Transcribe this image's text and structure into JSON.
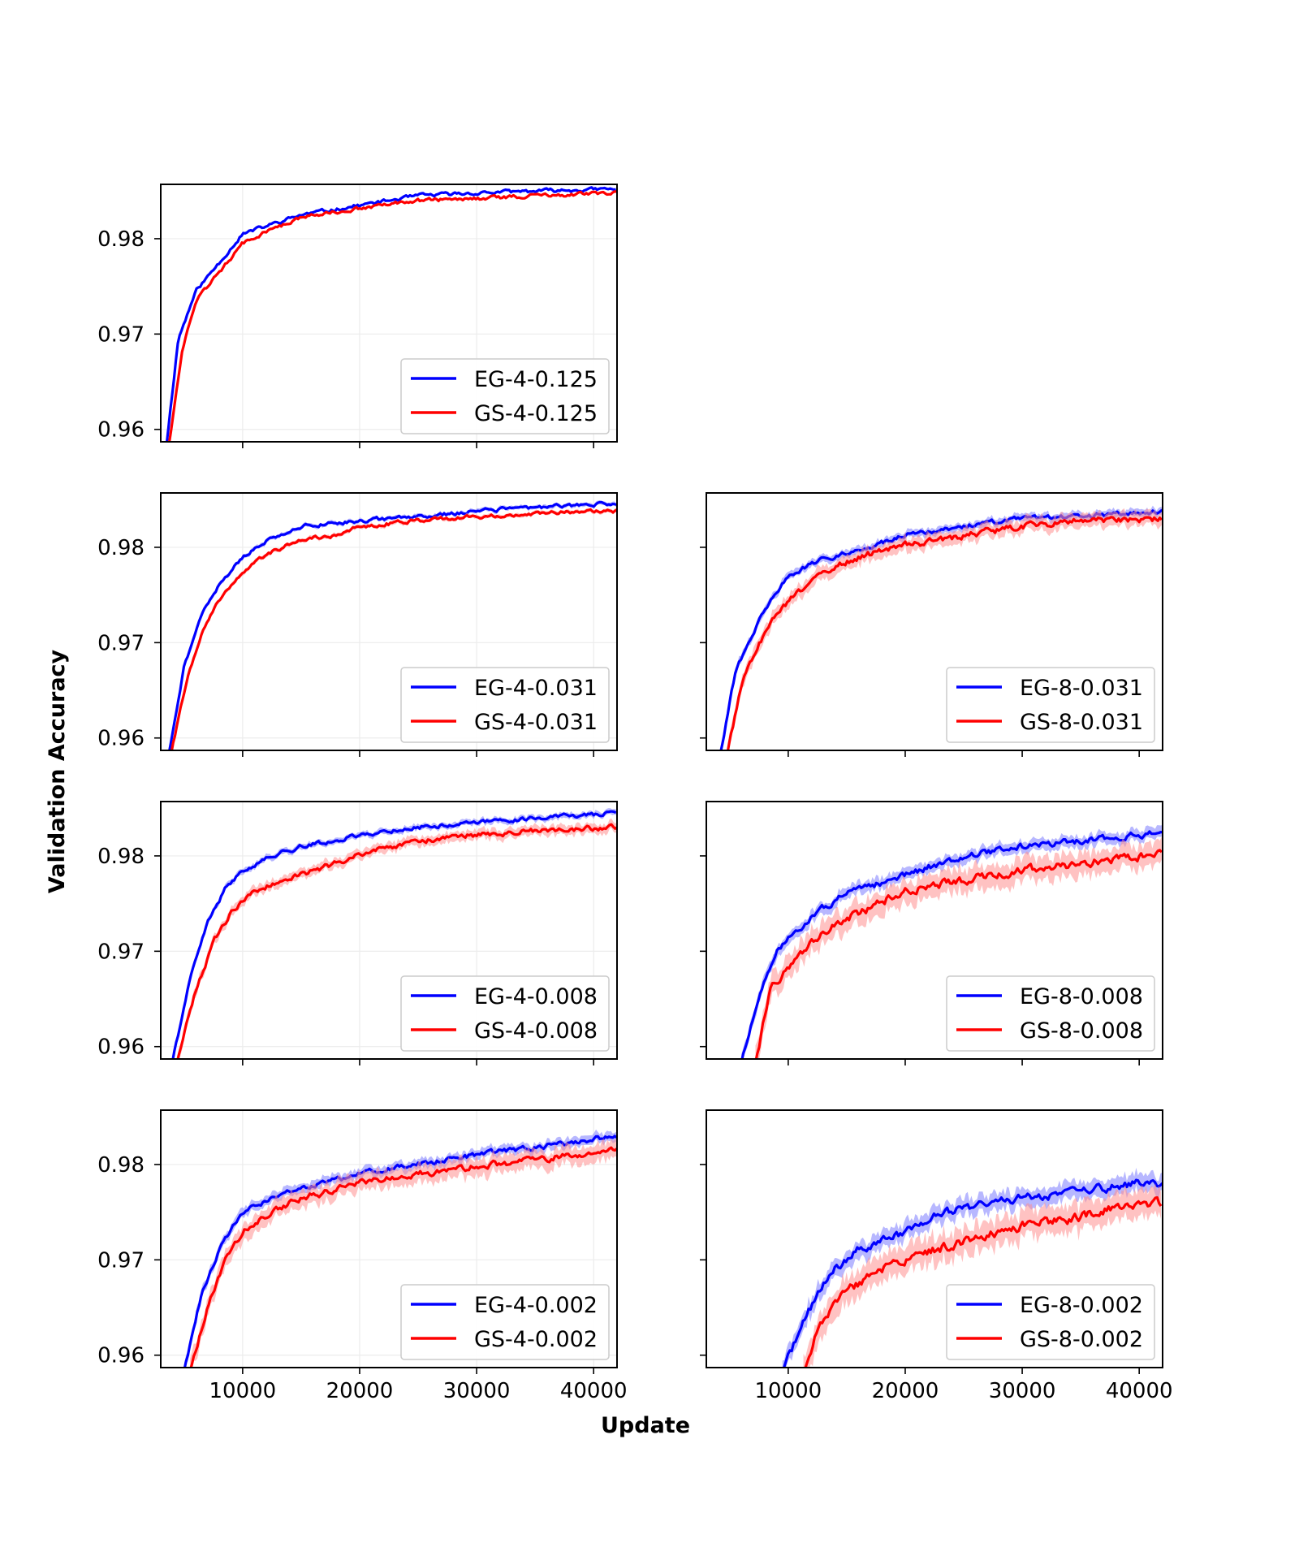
{
  "figure": {
    "ylabel": "Validation Accuracy",
    "xlabel": "Update",
    "colors": {
      "eg": "#0000ff",
      "gs": "#ff0000",
      "eg_band": "#7b7bff",
      "gs_band": "#ff8f8f"
    }
  },
  "chart_data": [
    {
      "type": "line",
      "id": "eg4-0125",
      "row": 0,
      "col": 0,
      "xlim": [
        3000,
        42000
      ],
      "ylim": [
        0.9587,
        0.9857
      ],
      "xticks": [
        10000,
        20000,
        30000,
        40000
      ],
      "xtick_labels": [
        "10000",
        "20000",
        "30000",
        "40000"
      ],
      "show_xtick_labels": false,
      "yticks": [
        0.96,
        0.97,
        0.98
      ],
      "ytick_labels": [
        "0.96",
        "0.97",
        "0.98"
      ],
      "show_ytick_labels": true,
      "grid": true,
      "legend_position": "lower-right",
      "series": [
        {
          "name": "EG-4-0.125",
          "color": "#0000ff",
          "band": 0,
          "anchors": [
            [
              3500,
              0.9585
            ],
            [
              4500,
              0.9695
            ],
            [
              6000,
              0.9745
            ],
            [
              8000,
              0.9775
            ],
            [
              10000,
              0.9805
            ],
            [
              12500,
              0.9815
            ],
            [
              15000,
              0.9825
            ],
            [
              20000,
              0.9835
            ],
            [
              25000,
              0.9845
            ],
            [
              30000,
              0.9848
            ],
            [
              35000,
              0.985
            ],
            [
              42000,
              0.9852
            ]
          ],
          "noise": 0.00035,
          "seed": 11
        },
        {
          "name": "GS-4-0.125",
          "color": "#ff0000",
          "band": 0,
          "anchors": [
            [
              3700,
              0.9585
            ],
            [
              4800,
              0.968
            ],
            [
              6000,
              0.9735
            ],
            [
              8000,
              0.9765
            ],
            [
              10000,
              0.9795
            ],
            [
              12500,
              0.981
            ],
            [
              15000,
              0.9822
            ],
            [
              20000,
              0.9832
            ],
            [
              25000,
              0.984
            ],
            [
              30000,
              0.9842
            ],
            [
              35000,
              0.9845
            ],
            [
              42000,
              0.9848
            ]
          ],
          "noise": 0.00035,
          "seed": 12
        }
      ]
    },
    {
      "type": "line",
      "id": "eg4-0031",
      "row": 1,
      "col": 0,
      "xlim": [
        3000,
        42000
      ],
      "ylim": [
        0.9587,
        0.9857
      ],
      "xticks": [
        10000,
        20000,
        30000,
        40000
      ],
      "xtick_labels": [
        "10000",
        "20000",
        "30000",
        "40000"
      ],
      "show_xtick_labels": false,
      "yticks": [
        0.96,
        0.97,
        0.98
      ],
      "ytick_labels": [
        "0.96",
        "0.97",
        "0.98"
      ],
      "show_ytick_labels": true,
      "grid": true,
      "legend_position": "lower-right",
      "series": [
        {
          "name": "EG-4-0.031",
          "color": "#0000ff",
          "band": 0.0002,
          "anchors": [
            [
              3700,
              0.9585
            ],
            [
              5000,
              0.9675
            ],
            [
              6500,
              0.973
            ],
            [
              8000,
              0.976
            ],
            [
              10000,
              0.979
            ],
            [
              12500,
              0.981
            ],
            [
              15000,
              0.9822
            ],
            [
              20000,
              0.9828
            ],
            [
              25000,
              0.9832
            ],
            [
              30000,
              0.9838
            ],
            [
              35000,
              0.9842
            ],
            [
              42000,
              0.9846
            ]
          ],
          "noise": 0.00035,
          "seed": 21
        },
        {
          "name": "GS-4-0.031",
          "color": "#ff0000",
          "band": 0.0002,
          "anchors": [
            [
              3900,
              0.9585
            ],
            [
              5200,
              0.966
            ],
            [
              6500,
              0.971
            ],
            [
              8000,
              0.9745
            ],
            [
              10000,
              0.9775
            ],
            [
              12500,
              0.9795
            ],
            [
              15000,
              0.9808
            ],
            [
              17500,
              0.9812
            ],
            [
              20000,
              0.9822
            ],
            [
              25000,
              0.9828
            ],
            [
              30000,
              0.9832
            ],
            [
              35000,
              0.9836
            ],
            [
              42000,
              0.9838
            ]
          ],
          "noise": 0.00035,
          "seed": 22
        }
      ]
    },
    {
      "type": "line",
      "id": "eg8-0031",
      "row": 1,
      "col": 1,
      "xlim": [
        3000,
        42000
      ],
      "ylim": [
        0.9587,
        0.9857
      ],
      "xticks": [
        10000,
        20000,
        30000,
        40000
      ],
      "xtick_labels": [
        "10000",
        "20000",
        "30000",
        "40000"
      ],
      "show_xtick_labels": false,
      "yticks": [
        0.96,
        0.97,
        0.98
      ],
      "ytick_labels": [
        "0.96",
        "0.97",
        "0.98"
      ],
      "show_ytick_labels": false,
      "grid": false,
      "legend_position": "lower-right",
      "series": [
        {
          "name": "EG-8-0.031",
          "color": "#0000ff",
          "band": 0.0004,
          "anchors": [
            [
              4200,
              0.9585
            ],
            [
              5500,
              0.967
            ],
            [
              7000,
              0.971
            ],
            [
              8500,
              0.9745
            ],
            [
              10000,
              0.977
            ],
            [
              12500,
              0.9785
            ],
            [
              15000,
              0.9795
            ],
            [
              17500,
              0.9802
            ],
            [
              20000,
              0.9812
            ],
            [
              25000,
              0.9822
            ],
            [
              30000,
              0.983
            ],
            [
              35000,
              0.9832
            ],
            [
              42000,
              0.9838
            ]
          ],
          "noise": 0.00045,
          "seed": 31
        },
        {
          "name": "GS-8-0.031",
          "color": "#ff0000",
          "band": 0.0007,
          "anchors": [
            [
              4800,
              0.9585
            ],
            [
              6000,
              0.9655
            ],
            [
              7500,
              0.97
            ],
            [
              9000,
              0.973
            ],
            [
              10500,
              0.9748
            ],
            [
              12500,
              0.977
            ],
            [
              15000,
              0.9785
            ],
            [
              17500,
              0.9795
            ],
            [
              20000,
              0.9802
            ],
            [
              25000,
              0.9812
            ],
            [
              30000,
              0.9822
            ],
            [
              35000,
              0.9828
            ],
            [
              42000,
              0.983
            ]
          ],
          "noise": 0.0006,
          "seed": 32
        }
      ]
    },
    {
      "type": "line",
      "id": "eg4-0008",
      "row": 2,
      "col": 0,
      "xlim": [
        3000,
        42000
      ],
      "ylim": [
        0.9587,
        0.9857
      ],
      "xticks": [
        10000,
        20000,
        30000,
        40000
      ],
      "xtick_labels": [
        "10000",
        "20000",
        "30000",
        "40000"
      ],
      "show_xtick_labels": false,
      "yticks": [
        0.96,
        0.97,
        0.98
      ],
      "ytick_labels": [
        "0.96",
        "0.97",
        "0.98"
      ],
      "show_ytick_labels": true,
      "grid": true,
      "legend_position": "lower-right",
      "series": [
        {
          "name": "EG-4-0.008",
          "color": "#0000ff",
          "band": 0.0003,
          "anchors": [
            [
              4000,
              0.9585
            ],
            [
              5500,
              0.967
            ],
            [
              7000,
              0.973
            ],
            [
              8500,
              0.9765
            ],
            [
              10000,
              0.9785
            ],
            [
              12500,
              0.98
            ],
            [
              15000,
              0.981
            ],
            [
              17500,
              0.9815
            ],
            [
              20000,
              0.9822
            ],
            [
              25000,
              0.983
            ],
            [
              30000,
              0.9835
            ],
            [
              35000,
              0.984
            ],
            [
              42000,
              0.9845
            ]
          ],
          "noise": 0.0004,
          "seed": 41
        },
        {
          "name": "GS-4-0.008",
          "color": "#ff0000",
          "band": 0.0005,
          "anchors": [
            [
              4400,
              0.9585
            ],
            [
              5800,
              0.965
            ],
            [
              7500,
              0.971
            ],
            [
              9000,
              0.974
            ],
            [
              10500,
              0.976
            ],
            [
              12500,
              0.977
            ],
            [
              15000,
              0.978
            ],
            [
              17500,
              0.979
            ],
            [
              20000,
              0.9802
            ],
            [
              25000,
              0.9815
            ],
            [
              30000,
              0.9822
            ],
            [
              35000,
              0.9826
            ],
            [
              42000,
              0.983
            ]
          ],
          "noise": 0.0005,
          "seed": 42
        }
      ]
    },
    {
      "type": "line",
      "id": "eg8-0008",
      "row": 2,
      "col": 1,
      "xlim": [
        3000,
        42000
      ],
      "ylim": [
        0.9587,
        0.9857
      ],
      "xticks": [
        10000,
        20000,
        30000,
        40000
      ],
      "xtick_labels": [
        "10000",
        "20000",
        "30000",
        "40000"
      ],
      "show_xtick_labels": false,
      "yticks": [
        0.96,
        0.97,
        0.98
      ],
      "ytick_labels": [
        "0.96",
        "0.97",
        "0.98"
      ],
      "show_ytick_labels": false,
      "grid": false,
      "legend_position": "lower-right",
      "series": [
        {
          "name": "EG-8-0.008",
          "color": "#0000ff",
          "band": 0.0006,
          "anchors": [
            [
              6000,
              0.9585
            ],
            [
              7500,
              0.965
            ],
            [
              9000,
              0.97
            ],
            [
              11000,
              0.9725
            ],
            [
              13000,
              0.9745
            ],
            [
              15000,
              0.976
            ],
            [
              17500,
              0.977
            ],
            [
              20000,
              0.978
            ],
            [
              25000,
              0.98
            ],
            [
              30000,
              0.981
            ],
            [
              35000,
              0.9815
            ],
            [
              42000,
              0.9825
            ]
          ],
          "noise": 0.0006,
          "seed": 51
        },
        {
          "name": "GS-8-0.008",
          "color": "#ff0000",
          "band": 0.0012,
          "anchors": [
            [
              7200,
              0.9585
            ],
            [
              8500,
              0.966
            ],
            [
              10500,
              0.969
            ],
            [
              12500,
              0.9715
            ],
            [
              15000,
              0.9735
            ],
            [
              17500,
              0.9748
            ],
            [
              20000,
              0.9765
            ],
            [
              25000,
              0.9775
            ],
            [
              30000,
              0.9785
            ],
            [
              35000,
              0.9792
            ],
            [
              42000,
              0.9802
            ]
          ],
          "noise": 0.0008,
          "seed": 52
        }
      ]
    },
    {
      "type": "line",
      "id": "eg4-0002",
      "row": 3,
      "col": 0,
      "xlim": [
        3000,
        42000
      ],
      "ylim": [
        0.9587,
        0.9857
      ],
      "xticks": [
        10000,
        20000,
        30000,
        40000
      ],
      "xtick_labels": [
        "10000",
        "20000",
        "30000",
        "40000"
      ],
      "show_xtick_labels": true,
      "yticks": [
        0.96,
        0.97,
        0.98
      ],
      "ytick_labels": [
        "0.96",
        "0.97",
        "0.98"
      ],
      "show_ytick_labels": true,
      "grid": true,
      "legend_position": "lower-right",
      "series": [
        {
          "name": "EG-4-0.002",
          "color": "#0000ff",
          "band": 0.0005,
          "anchors": [
            [
              5000,
              0.9585
            ],
            [
              6500,
              0.9665
            ],
            [
              8000,
              0.971
            ],
            [
              10000,
              0.975
            ],
            [
              12500,
              0.9765
            ],
            [
              15000,
              0.9775
            ],
            [
              17500,
              0.9782
            ],
            [
              20000,
              0.979
            ],
            [
              25000,
              0.98
            ],
            [
              30000,
              0.981
            ],
            [
              35000,
              0.9818
            ],
            [
              42000,
              0.983
            ]
          ],
          "noise": 0.0005,
          "seed": 61
        },
        {
          "name": "GS-4-0.002",
          "color": "#ff0000",
          "band": 0.0009,
          "anchors": [
            [
              5500,
              0.9585
            ],
            [
              7000,
              0.965
            ],
            [
              8500,
              0.97
            ],
            [
              10000,
              0.973
            ],
            [
              12500,
              0.975
            ],
            [
              15000,
              0.9765
            ],
            [
              17500,
              0.9772
            ],
            [
              20000,
              0.9782
            ],
            [
              25000,
              0.979
            ],
            [
              30000,
              0.9798
            ],
            [
              35000,
              0.9805
            ],
            [
              42000,
              0.9815
            ]
          ],
          "noise": 0.0006,
          "seed": 62
        }
      ]
    },
    {
      "type": "line",
      "id": "eg8-0002",
      "row": 3,
      "col": 1,
      "xlim": [
        3000,
        42000
      ],
      "ylim": [
        0.9587,
        0.9857
      ],
      "xticks": [
        10000,
        20000,
        30000,
        40000
      ],
      "xtick_labels": [
        "10000",
        "20000",
        "30000",
        "40000"
      ],
      "show_xtick_labels": true,
      "yticks": [
        0.96,
        0.97,
        0.98
      ],
      "ytick_labels": [
        "0.96",
        "0.97",
        "0.98"
      ],
      "show_ytick_labels": false,
      "grid": false,
      "legend_position": "lower-right",
      "series": [
        {
          "name": "EG-8-0.002",
          "color": "#0000ff",
          "band": 0.0009,
          "anchors": [
            [
              9500,
              0.9585
            ],
            [
              11000,
              0.9625
            ],
            [
              12500,
              0.9665
            ],
            [
              14000,
              0.969
            ],
            [
              16000,
              0.971
            ],
            [
              18000,
              0.972
            ],
            [
              20000,
              0.973
            ],
            [
              22500,
              0.9745
            ],
            [
              25000,
              0.9755
            ],
            [
              30000,
              0.9765
            ],
            [
              35000,
              0.9772
            ],
            [
              40000,
              0.978
            ],
            [
              42000,
              0.9778
            ]
          ],
          "noise": 0.0008,
          "seed": 71
        },
        {
          "name": "GS-8-0.002",
          "color": "#ff0000",
          "band": 0.0014,
          "anchors": [
            [
              11300,
              0.9585
            ],
            [
              12500,
              0.9625
            ],
            [
              14000,
              0.9655
            ],
            [
              16000,
              0.9675
            ],
            [
              18000,
              0.969
            ],
            [
              20000,
              0.97
            ],
            [
              22500,
              0.971
            ],
            [
              25000,
              0.972
            ],
            [
              30000,
              0.9735
            ],
            [
              35000,
              0.9745
            ],
            [
              40000,
              0.976
            ],
            [
              42000,
              0.976
            ]
          ],
          "noise": 0.0009,
          "seed": 72
        }
      ]
    }
  ]
}
